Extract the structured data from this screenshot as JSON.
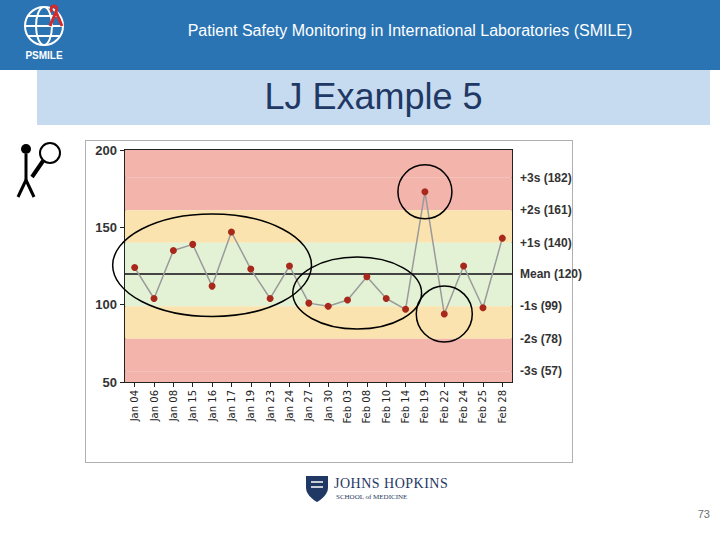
{
  "slide": {
    "header": "Patient Safety Monitoring in International Laboratories (SMILE)",
    "logo_text": "PSMILE",
    "title": "LJ Example 5",
    "footer_logo": {
      "name": "JOHNS HOPKINS",
      "school": "SCHOOL of MEDICINE"
    },
    "page_number": "73"
  },
  "chart_data": {
    "type": "line",
    "categories": [
      "Jan 04",
      "Jan 06",
      "Jan 08",
      "Jan 15",
      "Jan 16",
      "Jan 17",
      "Jan 19",
      "Jan 23",
      "Jan 24",
      "Jan 27",
      "Jan 30",
      "Feb 03",
      "Feb 08",
      "Feb 10",
      "Feb 14",
      "Feb 19",
      "Feb 22",
      "Feb 24",
      "Feb 25",
      "Feb 28"
    ],
    "values": [
      124,
      104,
      135,
      139,
      112,
      147,
      123,
      104,
      125,
      101,
      99,
      103,
      118,
      104,
      97,
      173,
      94,
      125,
      98,
      143
    ],
    "color": "#a8291c",
    "marker": "circle",
    "line_style": "solid",
    "ylim": [
      50,
      200
    ],
    "yticks": [
      50,
      100,
      150,
      200
    ],
    "y2lim": [
      50,
      200
    ],
    "y2ticks": [
      {
        "value": 182,
        "label": "+3s (182)"
      },
      {
        "value": 161,
        "label": "+2s (161)"
      },
      {
        "value": 140,
        "label": "+1s (140)"
      },
      {
        "value": 120,
        "label": "Mean (120)"
      },
      {
        "value": 99,
        "label": "-1s (99)"
      },
      {
        "value": 78,
        "label": "-2s (78)"
      },
      {
        "value": 57,
        "label": "-3s (57)"
      }
    ],
    "grid": false
  }
}
